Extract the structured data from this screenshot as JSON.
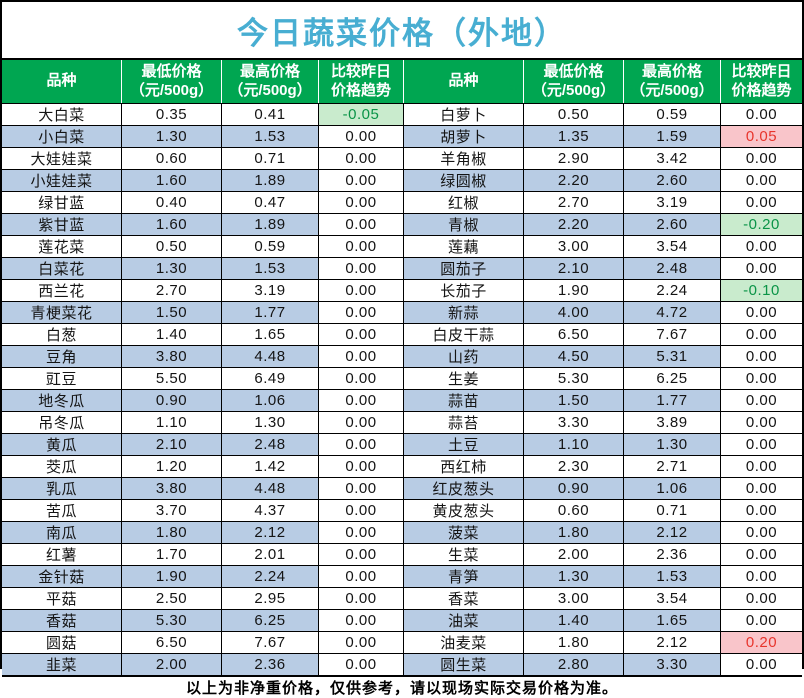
{
  "title": "今日蔬菜价格（外地）",
  "footer": "以上为非净重价格，仅供参考，请以现场实际交易价格为准。",
  "columns": {
    "variety": "品种",
    "min_line1": "最低价格",
    "min_line2": "（元/500g）",
    "max_line1": "最高价格",
    "max_line2": "（元/500g）",
    "trend_line1": "比较昨日",
    "trend_line2": "价格趋势"
  },
  "colors": {
    "title": "#48aed2",
    "header_bg": "#00a651",
    "header_text": "#ffffff",
    "stripe_blue": "#b8cce4",
    "trend_down_bg": "#c9ebcd",
    "trend_down_text": "#0a9447",
    "trend_up_bg": "#f9c5ca",
    "trend_up_text": "#e8352d"
  },
  "tables": [
    {
      "rows": [
        {
          "name": "大白菜",
          "min": "0.35",
          "max": "0.41",
          "trend": "-0.05",
          "state": "down"
        },
        {
          "name": "小白菜",
          "min": "1.30",
          "max": "1.53",
          "trend": "0.00",
          "state": "flat"
        },
        {
          "name": "大娃娃菜",
          "min": "0.60",
          "max": "0.71",
          "trend": "0.00",
          "state": "flat"
        },
        {
          "name": "小娃娃菜",
          "min": "1.60",
          "max": "1.89",
          "trend": "0.00",
          "state": "flat"
        },
        {
          "name": "绿甘蓝",
          "min": "0.40",
          "max": "0.47",
          "trend": "0.00",
          "state": "flat"
        },
        {
          "name": "紫甘蓝",
          "min": "1.60",
          "max": "1.89",
          "trend": "0.00",
          "state": "flat"
        },
        {
          "name": "莲花菜",
          "min": "0.50",
          "max": "0.59",
          "trend": "0.00",
          "state": "flat"
        },
        {
          "name": "白菜花",
          "min": "1.30",
          "max": "1.53",
          "trend": "0.00",
          "state": "flat"
        },
        {
          "name": "西兰花",
          "min": "2.70",
          "max": "3.19",
          "trend": "0.00",
          "state": "flat"
        },
        {
          "name": "青梗菜花",
          "min": "1.50",
          "max": "1.77",
          "trend": "0.00",
          "state": "flat"
        },
        {
          "name": "白葱",
          "min": "1.40",
          "max": "1.65",
          "trend": "0.00",
          "state": "flat"
        },
        {
          "name": "豆角",
          "min": "3.80",
          "max": "4.48",
          "trend": "0.00",
          "state": "flat"
        },
        {
          "name": "豇豆",
          "min": "5.50",
          "max": "6.49",
          "trend": "0.00",
          "state": "flat"
        },
        {
          "name": "地冬瓜",
          "min": "0.90",
          "max": "1.06",
          "trend": "0.00",
          "state": "flat"
        },
        {
          "name": "吊冬瓜",
          "min": "1.10",
          "max": "1.30",
          "trend": "0.00",
          "state": "flat"
        },
        {
          "name": "黄瓜",
          "min": "2.10",
          "max": "2.48",
          "trend": "0.00",
          "state": "flat"
        },
        {
          "name": "茭瓜",
          "min": "1.20",
          "max": "1.42",
          "trend": "0.00",
          "state": "flat"
        },
        {
          "name": "乳瓜",
          "min": "3.80",
          "max": "4.48",
          "trend": "0.00",
          "state": "flat"
        },
        {
          "name": "苦瓜",
          "min": "3.70",
          "max": "4.37",
          "trend": "0.00",
          "state": "flat"
        },
        {
          "name": "南瓜",
          "min": "1.80",
          "max": "2.12",
          "trend": "0.00",
          "state": "flat"
        },
        {
          "name": "红薯",
          "min": "1.70",
          "max": "2.01",
          "trend": "0.00",
          "state": "flat"
        },
        {
          "name": "金针菇",
          "min": "1.90",
          "max": "2.24",
          "trend": "0.00",
          "state": "flat"
        },
        {
          "name": "平菇",
          "min": "2.50",
          "max": "2.95",
          "trend": "0.00",
          "state": "flat"
        },
        {
          "name": "香菇",
          "min": "5.30",
          "max": "6.25",
          "trend": "0.00",
          "state": "flat"
        },
        {
          "name": "圆菇",
          "min": "6.50",
          "max": "7.67",
          "trend": "0.00",
          "state": "flat"
        },
        {
          "name": "韭菜",
          "min": "2.00",
          "max": "2.36",
          "trend": "0.00",
          "state": "flat"
        }
      ]
    },
    {
      "rows": [
        {
          "name": "白萝卜",
          "min": "0.50",
          "max": "0.59",
          "trend": "0.00",
          "state": "flat"
        },
        {
          "name": "胡萝卜",
          "min": "1.35",
          "max": "1.59",
          "trend": "0.05",
          "state": "up"
        },
        {
          "name": "羊角椒",
          "min": "2.90",
          "max": "3.42",
          "trend": "0.00",
          "state": "flat"
        },
        {
          "name": "绿圆椒",
          "min": "2.20",
          "max": "2.60",
          "trend": "0.00",
          "state": "flat"
        },
        {
          "name": "红椒",
          "min": "2.70",
          "max": "3.19",
          "trend": "0.00",
          "state": "flat"
        },
        {
          "name": "青椒",
          "min": "2.20",
          "max": "2.60",
          "trend": "-0.20",
          "state": "down"
        },
        {
          "name": "莲藕",
          "min": "3.00",
          "max": "3.54",
          "trend": "0.00",
          "state": "flat"
        },
        {
          "name": "圆茄子",
          "min": "2.10",
          "max": "2.48",
          "trend": "0.00",
          "state": "flat"
        },
        {
          "name": "长茄子",
          "min": "1.90",
          "max": "2.24",
          "trend": "-0.10",
          "state": "down"
        },
        {
          "name": "新蒜",
          "min": "4.00",
          "max": "4.72",
          "trend": "0.00",
          "state": "flat"
        },
        {
          "name": "白皮干蒜",
          "min": "6.50",
          "max": "7.67",
          "trend": "0.00",
          "state": "flat"
        },
        {
          "name": "山药",
          "min": "4.50",
          "max": "5.31",
          "trend": "0.00",
          "state": "flat"
        },
        {
          "name": "生姜",
          "min": "5.30",
          "max": "6.25",
          "trend": "0.00",
          "state": "flat"
        },
        {
          "name": "蒜苗",
          "min": "1.50",
          "max": "1.77",
          "trend": "0.00",
          "state": "flat"
        },
        {
          "name": "蒜苔",
          "min": "3.30",
          "max": "3.89",
          "trend": "0.00",
          "state": "flat"
        },
        {
          "name": "土豆",
          "min": "1.10",
          "max": "1.30",
          "trend": "0.00",
          "state": "flat"
        },
        {
          "name": "西红柿",
          "min": "2.30",
          "max": "2.71",
          "trend": "0.00",
          "state": "flat"
        },
        {
          "name": "红皮葱头",
          "min": "0.90",
          "max": "1.06",
          "trend": "0.00",
          "state": "flat"
        },
        {
          "name": "黄皮葱头",
          "min": "0.60",
          "max": "0.71",
          "trend": "0.00",
          "state": "flat"
        },
        {
          "name": "菠菜",
          "min": "1.80",
          "max": "2.12",
          "trend": "0.00",
          "state": "flat"
        },
        {
          "name": "生菜",
          "min": "2.00",
          "max": "2.36",
          "trend": "0.00",
          "state": "flat"
        },
        {
          "name": "青笋",
          "min": "1.30",
          "max": "1.53",
          "trend": "0.00",
          "state": "flat"
        },
        {
          "name": "香菜",
          "min": "3.00",
          "max": "3.54",
          "trend": "0.00",
          "state": "flat"
        },
        {
          "name": "油菜",
          "min": "1.40",
          "max": "1.65",
          "trend": "0.00",
          "state": "flat"
        },
        {
          "name": "油麦菜",
          "min": "1.80",
          "max": "2.12",
          "trend": "0.20",
          "state": "up"
        },
        {
          "name": "圆生菜",
          "min": "2.80",
          "max": "3.30",
          "trend": "0.00",
          "state": "flat"
        }
      ]
    }
  ]
}
